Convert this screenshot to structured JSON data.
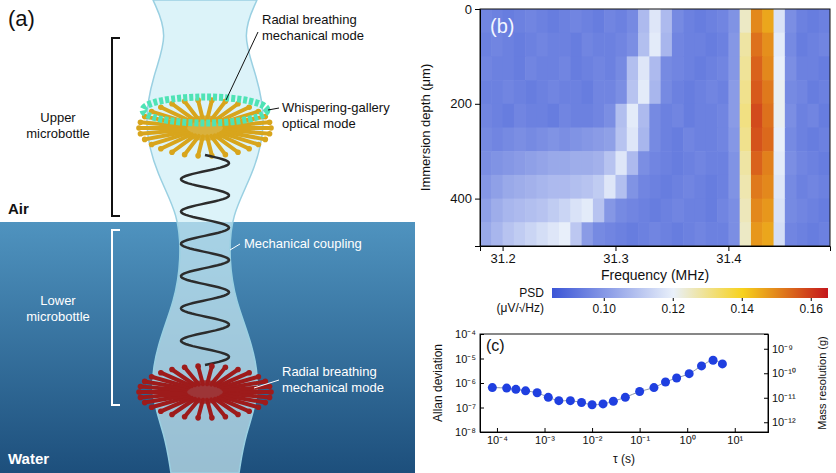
{
  "diagram": {
    "label": "(a)",
    "regions": [
      "Air",
      "Water"
    ],
    "brackets": [
      "Upper microbottle",
      "Lower microbottle"
    ],
    "callouts": [
      "Radial breathing mechanical mode",
      "Whispering-gallery optical mode",
      "Mechanical coupling",
      "Radial breathing mechanical mode"
    ]
  },
  "chart_data": [
    {
      "type": "heatmap",
      "label": "(b)",
      "x_label": "Frequency (MHz)",
      "y_label": "Immersion depth (μm)",
      "xlim": [
        31.18,
        31.49
      ],
      "xticks": [
        31.2,
        31.3,
        31.4
      ],
      "ylim": [
        0,
        500
      ],
      "yticks": [
        0,
        200,
        400
      ],
      "x": [
        31.185,
        31.195,
        31.205,
        31.215,
        31.225,
        31.235,
        31.245,
        31.255,
        31.265,
        31.275,
        31.285,
        31.295,
        31.305,
        31.315,
        31.325,
        31.335,
        31.345,
        31.355,
        31.365,
        31.375,
        31.385,
        31.395,
        31.405,
        31.415,
        31.425,
        31.435,
        31.445,
        31.455,
        31.465,
        31.475,
        31.485
      ],
      "y": [
        25,
        75,
        125,
        175,
        225,
        275,
        325,
        375,
        425,
        475
      ],
      "z": [
        [
          0.096,
          0.095,
          0.094,
          0.095,
          0.096,
          0.095,
          0.094,
          0.095,
          0.096,
          0.095,
          0.094,
          0.096,
          0.095,
          0.097,
          0.108,
          0.118,
          0.108,
          0.097,
          0.095,
          0.094,
          0.095,
          0.096,
          0.099,
          0.125,
          0.15,
          0.146,
          0.117,
          0.098,
          0.095,
          0.094,
          0.095
        ],
        [
          0.095,
          0.096,
          0.095,
          0.094,
          0.095,
          0.096,
          0.095,
          0.095,
          0.094,
          0.096,
          0.095,
          0.095,
          0.096,
          0.098,
          0.109,
          0.119,
          0.107,
          0.096,
          0.095,
          0.095,
          0.094,
          0.095,
          0.1,
          0.128,
          0.153,
          0.149,
          0.119,
          0.097,
          0.094,
          0.095,
          0.096
        ],
        [
          0.096,
          0.095,
          0.095,
          0.094,
          0.096,
          0.095,
          0.095,
          0.096,
          0.094,
          0.095,
          0.096,
          0.095,
          0.097,
          0.109,
          0.118,
          0.108,
          0.097,
          0.096,
          0.095,
          0.094,
          0.095,
          0.096,
          0.1,
          0.129,
          0.155,
          0.15,
          0.12,
          0.098,
          0.095,
          0.095,
          0.094
        ],
        [
          0.095,
          0.095,
          0.096,
          0.095,
          0.094,
          0.095,
          0.096,
          0.095,
          0.095,
          0.094,
          0.096,
          0.096,
          0.098,
          0.11,
          0.119,
          0.107,
          0.097,
          0.095,
          0.094,
          0.095,
          0.096,
          0.095,
          0.101,
          0.13,
          0.156,
          0.152,
          0.121,
          0.097,
          0.096,
          0.094,
          0.095
        ],
        [
          0.096,
          0.095,
          0.094,
          0.096,
          0.095,
          0.095,
          0.094,
          0.096,
          0.095,
          0.095,
          0.096,
          0.098,
          0.109,
          0.119,
          0.108,
          0.097,
          0.095,
          0.096,
          0.094,
          0.095,
          0.095,
          0.096,
          0.101,
          0.131,
          0.158,
          0.153,
          0.121,
          0.098,
          0.095,
          0.096,
          0.094
        ],
        [
          0.097,
          0.096,
          0.097,
          0.098,
          0.097,
          0.098,
          0.099,
          0.098,
          0.099,
          0.1,
          0.101,
          0.102,
          0.11,
          0.118,
          0.107,
          0.097,
          0.095,
          0.094,
          0.096,
          0.095,
          0.095,
          0.096,
          0.1,
          0.13,
          0.157,
          0.154,
          0.12,
          0.097,
          0.095,
          0.094,
          0.095
        ],
        [
          0.098,
          0.099,
          0.1,
          0.101,
          0.102,
          0.103,
          0.104,
          0.104,
          0.105,
          0.105,
          0.106,
          0.11,
          0.118,
          0.108,
          0.098,
          0.096,
          0.095,
          0.094,
          0.095,
          0.096,
          0.095,
          0.095,
          0.099,
          0.128,
          0.155,
          0.151,
          0.119,
          0.098,
          0.096,
          0.095,
          0.094
        ],
        [
          0.1,
          0.102,
          0.104,
          0.105,
          0.106,
          0.107,
          0.108,
          0.108,
          0.109,
          0.11,
          0.112,
          0.118,
          0.109,
          0.099,
          0.096,
          0.095,
          0.094,
          0.095,
          0.096,
          0.095,
          0.094,
          0.095,
          0.099,
          0.127,
          0.152,
          0.15,
          0.118,
          0.097,
          0.095,
          0.096,
          0.095
        ],
        [
          0.102,
          0.105,
          0.107,
          0.108,
          0.109,
          0.11,
          0.112,
          0.114,
          0.117,
          0.119,
          0.11,
          0.1,
          0.097,
          0.096,
          0.095,
          0.094,
          0.095,
          0.096,
          0.095,
          0.095,
          0.094,
          0.096,
          0.098,
          0.126,
          0.15,
          0.148,
          0.117,
          0.097,
          0.096,
          0.095,
          0.094
        ],
        [
          0.104,
          0.107,
          0.11,
          0.112,
          0.114,
          0.116,
          0.118,
          0.12,
          0.111,
          0.101,
          0.097,
          0.096,
          0.095,
          0.094,
          0.095,
          0.096,
          0.095,
          0.094,
          0.095,
          0.096,
          0.095,
          0.095,
          0.098,
          0.125,
          0.148,
          0.146,
          0.116,
          0.096,
          0.095,
          0.094,
          0.095
        ]
      ],
      "colorbar": {
        "label": "PSD",
        "units": "(μV/√Hz)",
        "range": [
          0.085,
          0.165
        ],
        "ticks": [
          {
            "value": 0.1,
            "label": "0.10"
          },
          0.12,
          0.14,
          0.16
        ]
      }
    },
    {
      "type": "scatter",
      "label": "(c)",
      "x_label": "τ (s)",
      "y_label": "Allan deviation",
      "y2_label": "Mass resolution (g)",
      "log": true,
      "xlim": [
        4.4e-05,
        50
      ],
      "xticks": [
        {
          "value": 0.0001,
          "label": "10⁻⁴"
        },
        {
          "value": 0.001,
          "label": "10⁻³"
        },
        {
          "value": 0.01,
          "label": "10⁻²"
        },
        {
          "value": 0.1,
          "label": "10⁻¹"
        },
        {
          "value": 1,
          "label": "10⁰"
        },
        {
          "value": 10,
          "label": "10¹"
        }
      ],
      "ylim": [
        1e-08,
        0.0001
      ],
      "yticks": [
        {
          "value": 1e-08,
          "label": "10⁻⁸"
        },
        {
          "value": 1e-07,
          "label": "10⁻⁷"
        },
        {
          "value": 1e-06,
          "label": "10⁻⁶"
        },
        {
          "value": 1e-05,
          "label": "10⁻⁵"
        },
        {
          "value": 0.0001,
          "label": "10⁻⁴"
        }
      ],
      "y2lim": [
        4e-13,
        4e-09
      ],
      "y2ticks": [
        {
          "value": 1e-12,
          "label": "10⁻¹²"
        },
        {
          "value": 1e-11,
          "label": "10⁻¹¹"
        },
        {
          "value": 1e-10,
          "label": "10⁻¹⁰"
        },
        {
          "value": 1e-09,
          "label": "10⁻⁹"
        }
      ],
      "x": [
        8e-05,
        0.00016,
        0.00025,
        0.0004,
        0.0007,
        0.0012,
        0.002,
        0.0035,
        0.006,
        0.01,
        0.017,
        0.028,
        0.05,
        0.1,
        0.2,
        0.35,
        0.6,
        1.1,
        2,
        3.5,
        5.5
      ],
      "series": [
        {
          "color": "#1f3fe0",
          "marker": "circle",
          "line_style": "solid",
          "values": [
            6.5e-07,
            6.2e-07,
            5.5e-07,
            4.8e-07,
            4e-07,
            2.6e-07,
            1.9e-07,
            1.9e-07,
            1.6e-07,
            1.3e-07,
            1.4e-07,
            1.8e-07,
            2.6e-07,
            4.5e-07,
            6.5e-07,
            1.1e-06,
            1.6e-06,
            2.4e-06,
            5e-06,
            8.5e-06,
            6e-06
          ]
        }
      ]
    }
  ]
}
